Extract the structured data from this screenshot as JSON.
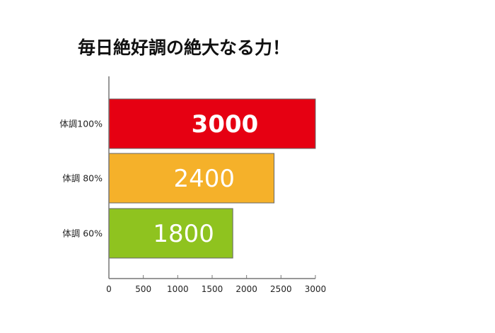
{
  "chart_data": {
    "type": "bar",
    "orientation": "horizontal",
    "title": "毎日絶好調の絶大なる力！",
    "xlabel": "",
    "ylabel": "",
    "categories": [
      "体調100%",
      "体調 80%",
      "体調 60%"
    ],
    "values": [
      3000,
      2400,
      1800
    ],
    "data_labels": [
      "3000",
      "2400",
      "1800"
    ],
    "bar_colors": [
      "#e60012",
      "#f5b12a",
      "#8fc31f"
    ],
    "xlim": [
      0,
      3000
    ],
    "x_ticks": [
      0,
      500,
      1000,
      1500,
      2000,
      2500,
      3000
    ],
    "x_tick_labels": [
      "0",
      "500",
      "1000",
      "1500",
      "2000",
      "2500",
      "3000"
    ],
    "grid": false,
    "legend": "none"
  }
}
